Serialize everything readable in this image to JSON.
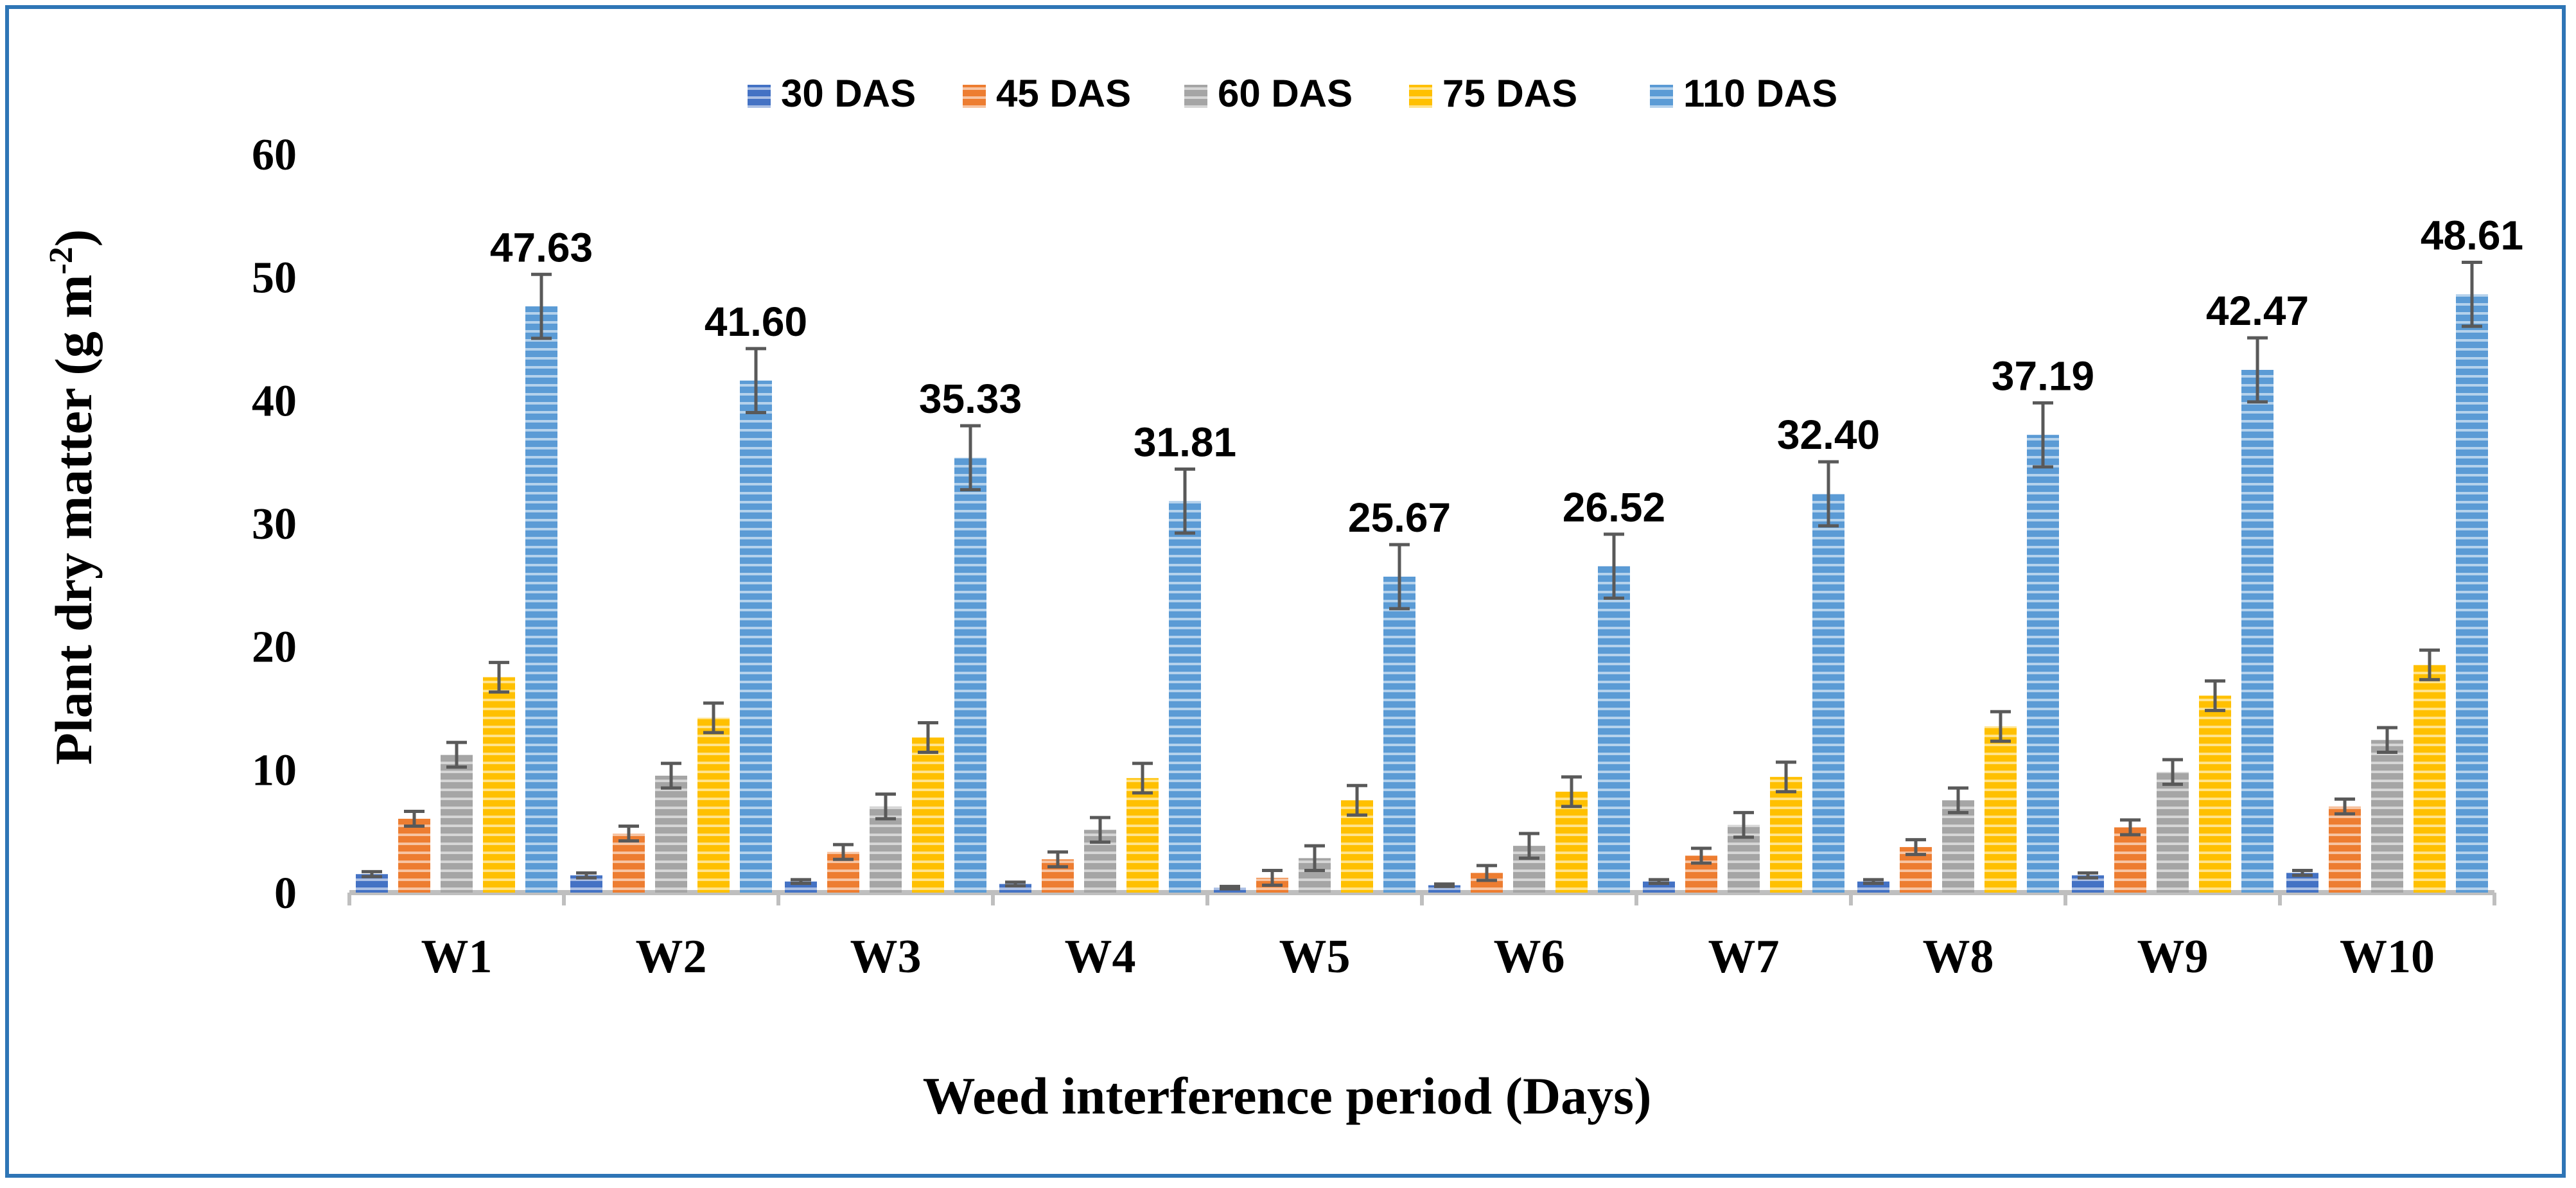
{
  "chart_data": {
    "type": "bar",
    "title": "",
    "xlabel": "Weed interference period (Days)",
    "ylabel": "Plant dry matter (g m",
    "ylabel_unit_superscript": "-2",
    "ylabel_close": ")",
    "ylim": [
      0,
      60
    ],
    "yticks": [
      "0",
      "10",
      "20",
      "30",
      "40",
      "50",
      "60"
    ],
    "grid": false,
    "legend_position": "top",
    "categories": [
      "W1",
      "W2",
      "W3",
      "W4",
      "W5",
      "W6",
      "W7",
      "W8",
      "W9",
      "W10"
    ],
    "series": [
      {
        "name": "30 DAS",
        "color": "#4472C4",
        "values": [
          1.5,
          1.4,
          0.9,
          0.7,
          0.4,
          0.6,
          0.9,
          0.9,
          1.4,
          1.6
        ],
        "errors": [
          0.2,
          0.2,
          0.15,
          0.15,
          0.1,
          0.1,
          0.15,
          0.15,
          0.2,
          0.2
        ]
      },
      {
        "name": "45 DAS",
        "color": "#ED7D31",
        "values": [
          6.0,
          4.8,
          3.3,
          2.7,
          1.2,
          1.6,
          3.0,
          3.7,
          5.3,
          7.0
        ],
        "errors": [
          0.6,
          0.6,
          0.6,
          0.6,
          0.6,
          0.6,
          0.6,
          0.6,
          0.6,
          0.6
        ]
      },
      {
        "name": "60 DAS",
        "color": "#A5A5A5",
        "values": [
          11.2,
          9.5,
          7.0,
          5.1,
          2.8,
          3.8,
          5.5,
          7.5,
          9.8,
          12.4
        ],
        "errors": [
          1.0,
          1.0,
          1.0,
          1.0,
          1.0,
          1.0,
          1.0,
          1.0,
          1.0,
          1.0
        ]
      },
      {
        "name": "75 DAS",
        "color": "#FFC000",
        "values": [
          17.5,
          14.2,
          12.6,
          9.3,
          7.5,
          8.2,
          9.4,
          13.5,
          16.0,
          18.5
        ],
        "errors": [
          1.2,
          1.2,
          1.2,
          1.2,
          1.2,
          1.2,
          1.2,
          1.2,
          1.2,
          1.2
        ]
      },
      {
        "name": "110 DAS",
        "color": "#5B9BD5",
        "values": [
          47.63,
          41.6,
          35.33,
          31.81,
          25.67,
          26.52,
          32.4,
          37.19,
          42.47,
          48.61
        ],
        "errors": [
          2.6,
          2.6,
          2.6,
          2.6,
          2.6,
          2.6,
          2.6,
          2.6,
          2.6,
          2.6
        ]
      }
    ],
    "data_labels": {
      "series": "110 DAS",
      "labels": [
        "47.63",
        "41.60",
        "35.33",
        "31.81",
        "25.67",
        "26.52",
        "32.40",
        "37.19",
        "42.47",
        "48.61"
      ]
    }
  }
}
